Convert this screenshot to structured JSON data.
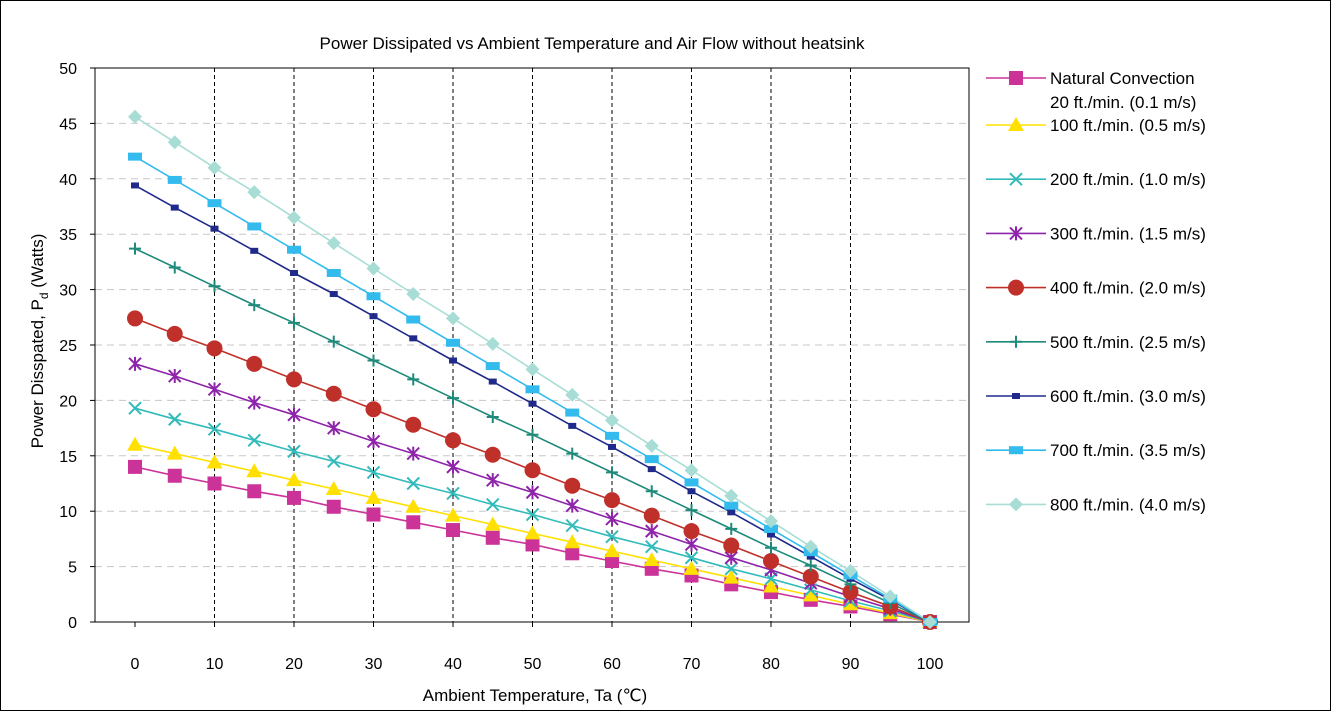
{
  "chart_data": {
    "type": "line",
    "title": "Power Dissipated vs Ambient Temperature and Air Flow without heatsink",
    "xlabel": "Ambient Temperature, Ta (℃)",
    "ylabel": {
      "main": "Power Disspated, P",
      "sub": "d",
      "unit": " (Watts)"
    },
    "xlim": [
      0,
      100
    ],
    "ylim": [
      0,
      50
    ],
    "xticks": [
      "0",
      "10",
      "20",
      "30",
      "40",
      "50",
      "60",
      "70",
      "80",
      "90",
      "100"
    ],
    "yticks": [
      "0",
      "5",
      "10",
      "15",
      "20",
      "25",
      "30",
      "35",
      "40",
      "45",
      "50"
    ],
    "grid": {
      "vertical": "dashed",
      "horizontal": "dashed"
    },
    "legend_position": "right",
    "x": [
      0,
      5,
      10,
      15,
      20,
      25,
      30,
      35,
      40,
      45,
      50,
      55,
      60,
      65,
      70,
      75,
      80,
      85,
      90,
      95,
      100
    ],
    "series": [
      {
        "name": "Natural Convection",
        "name_line2": "20 ft./min. (0.1 m/s)",
        "color": "#cc3399",
        "marker": "square",
        "values": [
          14.0,
          13.2,
          12.5,
          11.8,
          11.2,
          10.4,
          9.7,
          9.0,
          8.3,
          7.6,
          7.0,
          6.2,
          5.5,
          4.8,
          4.2,
          3.4,
          2.7,
          2.0,
          1.4,
          0.7,
          0
        ]
      },
      {
        "name": "100 ft./min. (0.5 m/s)",
        "color": "#ffe000",
        "marker": "triangle",
        "values": [
          16.0,
          15.2,
          14.4,
          13.6,
          12.8,
          12.0,
          11.2,
          10.4,
          9.6,
          8.8,
          8.0,
          7.2,
          6.4,
          5.6,
          4.8,
          4.0,
          3.2,
          2.4,
          1.6,
          0.8,
          0
        ]
      },
      {
        "name": "200 ft./min. (1.0 m/s)",
        "color": "#33bbbb",
        "marker": "x",
        "values": [
          19.3,
          18.3,
          17.4,
          16.4,
          15.4,
          14.5,
          13.5,
          12.5,
          11.6,
          10.6,
          9.7,
          8.7,
          7.7,
          6.8,
          5.8,
          4.8,
          3.9,
          2.9,
          1.9,
          1.0,
          0
        ]
      },
      {
        "name": "300 ft./min. (1.5 m/s)",
        "color": "#8e24aa",
        "marker": "star",
        "values": [
          23.3,
          22.2,
          21.0,
          19.8,
          18.7,
          17.5,
          16.3,
          15.2,
          14.0,
          12.8,
          11.7,
          10.5,
          9.3,
          8.2,
          7.0,
          5.8,
          4.7,
          3.5,
          2.3,
          1.2,
          0
        ]
      },
      {
        "name": "400 ft./min. (2.0 m/s)",
        "color": "#c0302a",
        "marker": "circle",
        "values": [
          27.4,
          26.0,
          24.7,
          23.3,
          21.9,
          20.6,
          19.2,
          17.8,
          16.4,
          15.1,
          13.7,
          12.3,
          11.0,
          9.6,
          8.2,
          6.9,
          5.5,
          4.1,
          2.7,
          1.4,
          0
        ]
      },
      {
        "name": "500 ft./min. (2.5 m/s)",
        "color": "#1f8a7a",
        "marker": "plus",
        "values": [
          33.7,
          32.0,
          30.3,
          28.6,
          27.0,
          25.3,
          23.6,
          21.9,
          20.2,
          18.5,
          16.9,
          15.2,
          13.5,
          11.8,
          10.1,
          8.4,
          6.7,
          5.1,
          3.4,
          1.7,
          0
        ]
      },
      {
        "name": "600 ft./min. (3.0 m/s)",
        "color": "#1f2a8a",
        "marker": "smallsquare",
        "values": [
          39.4,
          37.4,
          35.5,
          33.5,
          31.5,
          29.6,
          27.6,
          25.6,
          23.6,
          21.7,
          19.7,
          17.7,
          15.8,
          13.8,
          11.8,
          9.9,
          7.9,
          5.9,
          3.9,
          2.0,
          0
        ]
      },
      {
        "name": "700 ft./min. (3.5 m/s)",
        "color": "#33bbee",
        "marker": "rect",
        "values": [
          42.0,
          39.9,
          37.8,
          35.7,
          33.6,
          31.5,
          29.4,
          27.3,
          25.2,
          23.1,
          21.0,
          18.9,
          16.8,
          14.7,
          12.6,
          10.5,
          8.4,
          6.3,
          4.2,
          2.1,
          0
        ]
      },
      {
        "name": "800 ft./min. (4.0 m/s)",
        "color": "#a8ddd6",
        "marker": "diamond",
        "values": [
          45.6,
          43.3,
          41.0,
          38.8,
          36.5,
          34.2,
          31.9,
          29.6,
          27.4,
          25.1,
          22.8,
          20.5,
          18.2,
          15.9,
          13.7,
          11.4,
          9.1,
          6.8,
          4.6,
          2.3,
          0
        ]
      }
    ]
  }
}
